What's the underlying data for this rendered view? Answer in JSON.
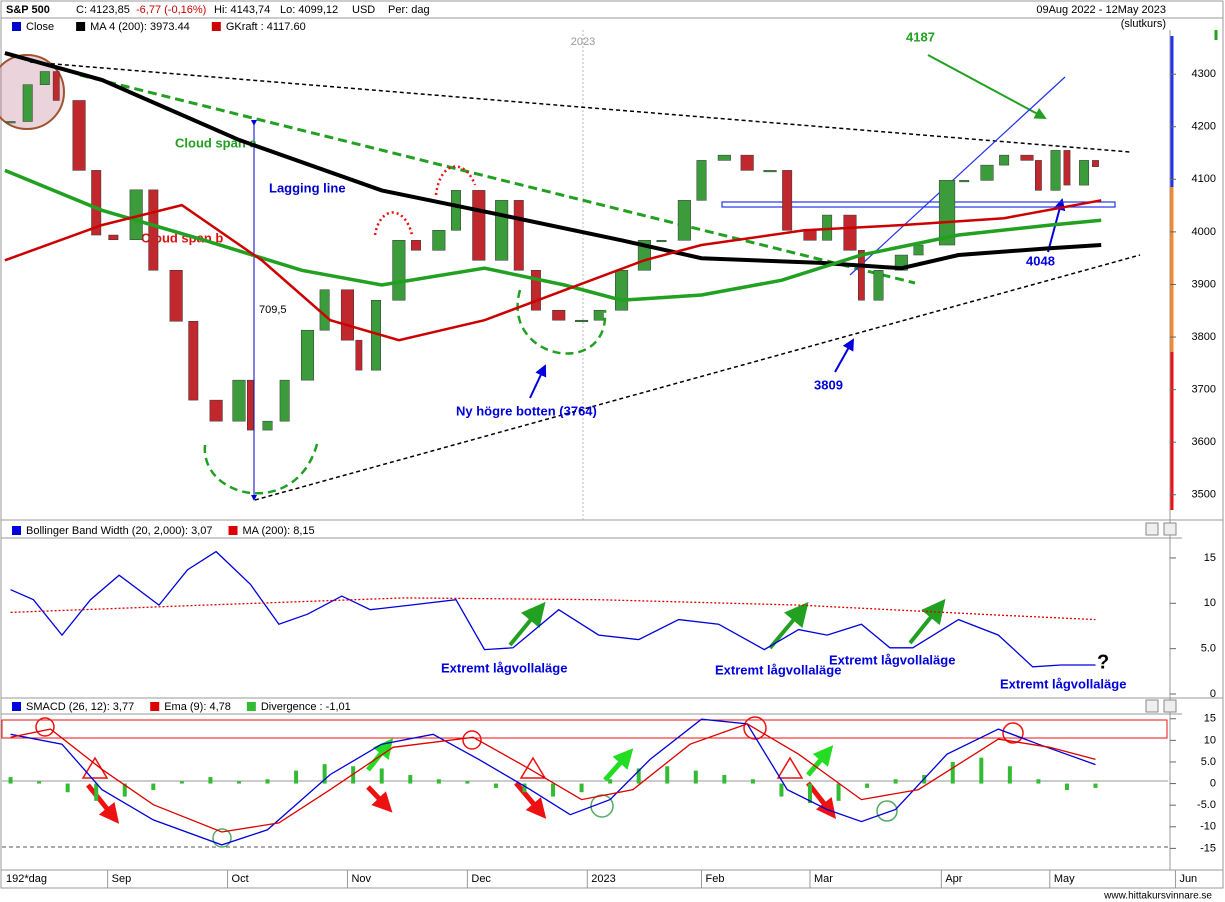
{
  "header": {
    "symbol": "S&P 500",
    "close": "C: 4123,85",
    "change": "-6,77 (-0,16%)",
    "high": "Hi: 4143,74",
    "low": "Lo: 4099,12",
    "currency": "USD",
    "period": "Per: dag",
    "range": "09Aug 2022 - 12May 2023",
    "price_type": "(slutkurs)"
  },
  "footer": "www.hittakursvinnare.se",
  "chart_data": [
    {
      "type": "candlestick",
      "up_color": "#3c9c3c",
      "down_color": "#c0282e",
      "xlim": [
        -1.5,
        209
      ],
      "ylim": [
        3452,
        4384
      ],
      "yticks": [
        3500,
        3600,
        3700,
        3800,
        3900,
        4000,
        4100,
        4200,
        4300
      ],
      "series": [
        {
          "name": "Close",
          "color": "#0000cc",
          "x": [
            0,
            3,
            6,
            8,
            12,
            15,
            18,
            22,
            25,
            29,
            32,
            36,
            40,
            42,
            45,
            48,
            52,
            55,
            59,
            61,
            64,
            68,
            71,
            75,
            78,
            82,
            86,
            89,
            92,
            96,
            100,
            103,
            107,
            111,
            114,
            118,
            121,
            125,
            129,
            133,
            136,
            140,
            143,
            147,
            149,
            152,
            156,
            159,
            164,
            167,
            171,
            174,
            178,
            180,
            183,
            185,
            188,
            190
          ],
          "values": [
            4210,
            4280,
            4305,
            4250,
            4117,
            3994,
            3985,
            4080,
            3927,
            3830,
            3680,
            3640,
            3718,
            3623,
            3640,
            3718,
            3813,
            3890,
            3794,
            3737,
            3870,
            3984,
            3965,
            4003,
            4079,
            3946,
            4060,
            3927,
            3851,
            3832,
            3832,
            3851,
            3927,
            3984,
            3984,
            4060,
            4136,
            4146,
            4117,
            4117,
            4003,
            3984,
            4032,
            3965,
            3870,
            3927,
            3956,
            3975,
            4098,
            4098,
            4127,
            4146,
            4136,
            4079,
            4155,
            4089,
            4136,
            4124
          ]
        },
        {
          "name": "MA 4 (200): 3973.44",
          "color": "#000000",
          "width": 4,
          "x": [
            -1,
            16,
            40,
            65,
            86,
            107,
            121,
            142,
            156,
            166,
            182,
            191
          ],
          "values": [
            4340,
            4289,
            4175,
            4079,
            4032,
            3984,
            3950,
            3941,
            3931,
            3956,
            3969,
            3975
          ]
        },
        {
          "color": "#22a022",
          "width": 3.5,
          "x": [
            -1,
            16,
            34,
            51,
            65,
            83,
            97,
            107,
            121,
            135,
            149,
            166,
            182,
            191
          ],
          "values": [
            4117,
            4041,
            3984,
            3927,
            3899,
            3931,
            3899,
            3870,
            3880,
            3908,
            3956,
            3994,
            4013,
            4022
          ]
        },
        {
          "name": "GKraft : 4117.60",
          "color": "#cc0000",
          "width": 2.5,
          "x": [
            -1,
            16,
            30,
            44,
            56,
            68,
            83,
            97,
            111,
            121,
            139,
            156,
            174,
            191
          ],
          "values": [
            3946,
            4013,
            4051,
            3946,
            3832,
            3794,
            3832,
            3889,
            3946,
            3975,
            4003,
            4013,
            4026,
            4060
          ]
        }
      ],
      "annotations": [
        "4187",
        "Cloud span a",
        "Lagging line",
        "Cloud span b",
        "709,5",
        "Ny högre botten (3764)",
        "3809",
        "4048",
        "2023"
      ]
    },
    {
      "type": "line",
      "xlim": [
        -1.5,
        209
      ],
      "ylim": [
        -0.66,
        17.2
      ],
      "yticks": [
        0,
        {
          "value": 5,
          "label": "5.0"
        },
        10,
        15
      ],
      "series": [
        {
          "name": "Bollinger Band Width (20, 2,000): 3,07",
          "color": "#0000dd",
          "x": [
            0,
            4,
            9,
            14,
            19,
            26,
            31,
            36,
            42,
            47,
            52,
            58,
            63,
            70,
            78,
            83,
            88,
            96,
            103,
            110,
            117,
            124,
            132,
            138,
            143,
            149,
            154,
            158,
            166,
            173,
            179,
            184,
            190
          ],
          "values": [
            11.5,
            10.4,
            6.5,
            10.4,
            13.1,
            9.8,
            13.7,
            15.7,
            12.1,
            7.7,
            8.8,
            10.8,
            9.3,
            9.8,
            10.4,
            4.9,
            5.1,
            9.3,
            6.5,
            6.0,
            8.2,
            7.7,
            4.9,
            7.1,
            6.5,
            7.7,
            5.1,
            5.1,
            8.2,
            6.5,
            3.0,
            3.2,
            3.2
          ]
        },
        {
          "name": "MA (200): 8,15",
          "color": "#dd0000",
          "style": "dotted",
          "x": [
            0,
            34,
            69,
            103,
            138,
            173,
            190
          ],
          "values": [
            9.0,
            9.8,
            10.6,
            10.4,
            9.8,
            8.7,
            8.2
          ]
        }
      ],
      "annotations": [
        "Extremt lågvollaläge",
        "Extremt lågvollaläge",
        "Extremt lågvollaläge",
        "Extremt lågvollaläge",
        "?"
      ]
    },
    {
      "type": "line",
      "xlim": [
        -1.5,
        209
      ],
      "ylim": [
        -20,
        16.1
      ],
      "yticks": [
        15,
        10,
        {
          "value": 5,
          "label": "5.0"
        },
        0,
        {
          "value": -5,
          "label": "-5.0"
        },
        -10,
        -15
      ],
      "series": [
        {
          "name": "SMACD (26, 12): 3,77",
          "color": "#0000dd",
          "x": [
            0,
            9,
            16,
            25,
            37,
            45,
            56,
            65,
            74,
            82,
            91,
            98,
            105,
            112,
            121,
            129,
            136,
            143,
            149,
            155,
            164,
            173,
            180,
            190
          ],
          "values": [
            11.4,
            9.1,
            -1.4,
            -8.4,
            -14.2,
            -10.7,
            2.1,
            9.1,
            11.4,
            5.6,
            -1.4,
            -7.2,
            -3.7,
            5.6,
            14.9,
            13.8,
            -1.4,
            -6.0,
            -8.8,
            -6.0,
            6.8,
            12.6,
            9.1,
            4.4
          ]
        },
        {
          "name": "Ema (9): 4,78",
          "color": "#dd0000",
          "x": [
            0,
            7,
            16,
            25,
            37,
            47,
            56,
            67,
            81,
            91,
            100,
            109,
            119,
            129,
            138,
            149,
            159,
            173,
            182,
            190
          ],
          "values": [
            10.7,
            12.6,
            3.3,
            -4.9,
            -11.2,
            -9.1,
            -1.4,
            8.4,
            10.7,
            3.3,
            -3.7,
            -1.4,
            9.1,
            13.8,
            6.8,
            -3.7,
            -1.4,
            10.3,
            8.4,
            5.6
          ]
        }
      ],
      "bars": {
        "name": "Divergence : -1,01",
        "color": "#33bb33",
        "x": [
          0,
          5,
          10,
          15,
          20,
          25,
          30,
          35,
          40,
          45,
          50,
          55,
          60,
          65,
          70,
          75,
          80,
          85,
          90,
          95,
          100,
          105,
          110,
          115,
          120,
          125,
          130,
          135,
          140,
          145,
          150,
          155,
          160,
          165,
          170,
          175,
          180,
          185,
          190
        ],
        "values": [
          1.5,
          0.5,
          -2,
          -4,
          -3,
          -1.5,
          0.5,
          1.5,
          0.5,
          1,
          3,
          4.5,
          4,
          3.5,
          2,
          1,
          0.5,
          -1,
          -2,
          -3,
          -2,
          1,
          3.5,
          4,
          3,
          2,
          1,
          -3,
          -4.5,
          -4,
          -1,
          1,
          2,
          5,
          6,
          4,
          1,
          -1.5,
          -1
        ]
      },
      "xticks": [
        {
          "value": 17,
          "label": "Sep"
        },
        {
          "value": 38,
          "label": "Oct"
        },
        {
          "value": 59,
          "label": "Nov"
        },
        {
          "value": 80,
          "label": "Dec"
        },
        {
          "value": 101,
          "label": "2023"
        },
        {
          "value": 121,
          "label": "Feb"
        },
        {
          "value": 140,
          "label": "Mar"
        },
        {
          "value": 163,
          "label": "Apr"
        },
        {
          "value": 182,
          "label": "May"
        },
        {
          "value": 204,
          "label": "Jun"
        }
      ],
      "x_label": "192*dag"
    }
  ]
}
